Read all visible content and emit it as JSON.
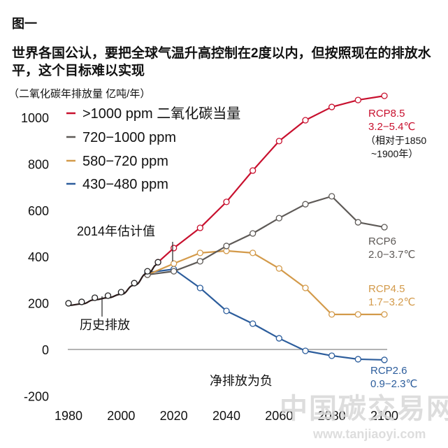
{
  "figure_label": "图一",
  "headline": "世界各国公认，要把全球气温升高控制在2度以内，但按照现在的排放水平，这个目标难以实现",
  "chart_data": {
    "type": "line",
    "title": "世界各国公认，要把全球气温升高控制在2度以内，但按照现在的排放水平，这个目标难以实现",
    "ylabel": "（二氧化碳年排放量  亿吨/年）",
    "xlabel": "",
    "xlim": [
      1980,
      2100
    ],
    "ylim": [
      -200,
      1000
    ],
    "xticks": [
      "1980",
      "2000",
      "2020",
      "2040",
      "2060",
      "2080",
      "2100"
    ],
    "yticks": [
      "1000",
      "800",
      "600",
      "400",
      "200",
      "0",
      "-200"
    ],
    "grid": false,
    "zero_line": true,
    "legend_position": "top-left",
    "series": [
      {
        "name": "历史排放",
        "color": "#2a1a1a",
        "x": [
          1980,
          1985,
          1990,
          1995,
          2000,
          2005,
          2010,
          2014
        ],
        "values": [
          199,
          205,
          223,
          232,
          247,
          286,
          337,
          376
        ]
      },
      {
        "name": ">1000 ppm 二氧化碳当量",
        "scenario": "RCP8.5",
        "warming": "3.2−5.4℃",
        "color": "#c8102e",
        "x": [
          2014,
          2020,
          2030,
          2040,
          2050,
          2060,
          2070,
          2080,
          2090,
          2100
        ],
        "values": [
          376,
          437,
          524,
          636,
          771,
          898,
          988,
          1045,
          1075,
          1093
        ]
      },
      {
        "name": "720−1000 ppm",
        "scenario": "RCP6",
        "warming": "2.0−3.7℃",
        "color": "#5e5a57",
        "x": [
          2010,
          2020,
          2030,
          2040,
          2050,
          2060,
          2070,
          2080,
          2090,
          2100
        ],
        "values": [
          322,
          337,
          380,
          446,
          500,
          566,
          626,
          660,
          548,
          527
        ]
      },
      {
        "name": "580−720 ppm",
        "scenario": "RCP4.5",
        "warming": "1.7−3.2℃",
        "color": "#d39a4a",
        "x": [
          2010,
          2020,
          2030,
          2040,
          2050,
          2060,
          2070,
          2080,
          2090,
          2100
        ],
        "values": [
          322,
          370,
          416,
          425,
          416,
          349,
          265,
          151,
          151,
          151
        ]
      },
      {
        "name": "430−480 ppm",
        "scenario": "RCP2.6",
        "warming": "0.9−2.3℃",
        "color": "#2c5d9c",
        "x": [
          2010,
          2020,
          2030,
          2040,
          2050,
          2060,
          2070,
          2080,
          2090,
          2100
        ],
        "values": [
          331,
          346,
          265,
          166,
          111,
          48,
          -6,
          -27,
          -42,
          -45
        ]
      }
    ],
    "annotations": {
      "estimate_2014": "2014年估计值",
      "history": "历史排放",
      "net_negative": "净排放为负",
      "baseline_note_1": "（相对于1850",
      "baseline_note_2": "~1900年）"
    }
  },
  "watermark": {
    "text": "中国碳交易网",
    "url_text": "www.tanjiaoyi.com"
  }
}
